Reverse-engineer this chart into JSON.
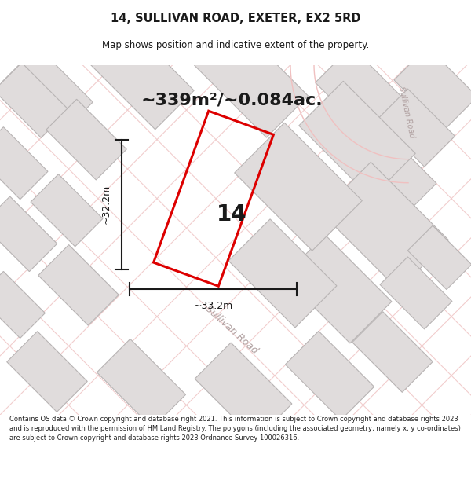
{
  "title_line1": "14, SULLIVAN ROAD, EXETER, EX2 5RD",
  "title_line2": "Map shows position and indicative extent of the property.",
  "area_label": "~339m²/~0.084ac.",
  "plot_number": "14",
  "dim_height": "~32.2m",
  "dim_width": "~33.2m",
  "road_label": "Sullivan Road",
  "road_label2": "Sullivan Road",
  "footer": "Contains OS data © Crown copyright and database right 2021. This information is subject to Crown copyright and database rights 2023 and is reproduced with the permission of HM Land Registry. The polygons (including the associated geometry, namely x, y co-ordinates) are subject to Crown copyright and database rights 2023 Ordnance Survey 100026316.",
  "bg_color": "#f5f0f0",
  "map_bg": "#f5f2f2",
  "plot_color": "#dd0000",
  "building_color": "#e0dcdc",
  "building_edge": "#b8b4b4",
  "grid_line_color": "#f0c8c8",
  "dim_line_color": "#1a1a1a",
  "text_color": "#1a1a1a",
  "road_text_color": "#b0a0a0",
  "title_color": "#1a1a1a",
  "road_curve_color": "#f0c0c0"
}
